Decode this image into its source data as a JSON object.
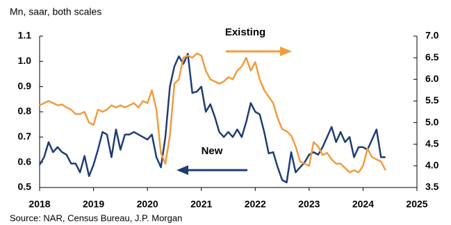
{
  "chart_data": {
    "type": "line",
    "subtitle": "Mn, saar, both scales",
    "source": "Source: NAR, Census Bureau, J.P. Morgan",
    "annotations": [
      "Existing",
      "New"
    ],
    "x": [
      2018,
      2018.083,
      2018.167,
      2018.25,
      2018.333,
      2018.417,
      2018.5,
      2018.583,
      2018.667,
      2018.75,
      2018.833,
      2018.917,
      2019,
      2019.083,
      2019.167,
      2019.25,
      2019.333,
      2019.417,
      2019.5,
      2019.583,
      2019.667,
      2019.75,
      2019.833,
      2019.917,
      2020,
      2020.083,
      2020.167,
      2020.25,
      2020.333,
      2020.417,
      2020.5,
      2020.583,
      2020.667,
      2020.75,
      2020.833,
      2020.917,
      2021,
      2021.083,
      2021.167,
      2021.25,
      2021.333,
      2021.417,
      2021.5,
      2021.583,
      2021.667,
      2021.75,
      2021.833,
      2021.917,
      2022,
      2022.083,
      2022.167,
      2022.25,
      2022.333,
      2022.417,
      2022.5,
      2022.583,
      2022.667,
      2022.75,
      2022.833,
      2022.917,
      2023,
      2023.083,
      2023.167,
      2023.25,
      2023.333,
      2023.417,
      2023.5,
      2023.583,
      2023.667,
      2023.75,
      2023.833,
      2023.917,
      2024,
      2024.083,
      2024.167,
      2024.25,
      2024.333,
      2024.417
    ],
    "series": [
      {
        "name": "New",
        "color": "#1f3d73",
        "axis": "y",
        "values": [
          0.59,
          0.62,
          0.68,
          0.64,
          0.66,
          0.64,
          0.63,
          0.595,
          0.595,
          0.56,
          0.625,
          0.545,
          0.59,
          0.65,
          0.72,
          0.71,
          0.62,
          0.73,
          0.65,
          0.71,
          0.71,
          0.72,
          0.71,
          0.7,
          0.69,
          0.71,
          0.62,
          0.58,
          0.7,
          0.9,
          0.98,
          1.02,
          0.99,
          1.03,
          0.875,
          0.88,
          0.9,
          0.8,
          0.83,
          0.78,
          0.72,
          0.7,
          0.72,
          0.7,
          0.73,
          0.7,
          0.76,
          0.835,
          0.8,
          0.79,
          0.72,
          0.635,
          0.64,
          0.58,
          0.53,
          0.52,
          0.64,
          0.56,
          0.58,
          0.6,
          0.63,
          0.64,
          0.63,
          0.66,
          0.7,
          0.74,
          0.68,
          0.72,
          0.68,
          0.7,
          0.62,
          0.66,
          0.66,
          0.65,
          0.69,
          0.73,
          0.62,
          0.62
        ]
      },
      {
        "name": "Existing",
        "color": "#f39b3c",
        "axis": "y2",
        "values": [
          5.4,
          5.45,
          5.5,
          5.45,
          5.4,
          5.42,
          5.35,
          5.3,
          5.2,
          5.2,
          5.25,
          5.0,
          4.95,
          5.3,
          5.25,
          5.3,
          5.4,
          5.35,
          5.4,
          5.35,
          5.4,
          5.45,
          5.35,
          5.5,
          5.45,
          5.75,
          5.3,
          4.3,
          4.05,
          4.7,
          5.9,
          6.0,
          6.5,
          6.55,
          6.5,
          6.6,
          6.55,
          6.2,
          6.0,
          5.95,
          5.9,
          5.95,
          6.05,
          6.0,
          6.2,
          6.3,
          6.5,
          6.2,
          6.4,
          6.0,
          5.75,
          5.6,
          5.45,
          5.1,
          4.85,
          4.8,
          4.7,
          4.45,
          4.1,
          4.05,
          4.0,
          4.55,
          4.45,
          4.25,
          4.3,
          4.15,
          4.05,
          4.05,
          3.95,
          3.85,
          3.9,
          3.85,
          4.0,
          4.4,
          4.2,
          4.15,
          4.1,
          3.9
        ]
      }
    ],
    "xlim": [
      2018,
      2025
    ],
    "xticks": [
      2018,
      2019,
      2020,
      2021,
      2022,
      2023,
      2024,
      2025
    ],
    "ylim": [
      0.5,
      1.1
    ],
    "yticks": [
      0.5,
      0.6,
      0.7,
      0.8,
      0.9,
      {
        "value": 1,
        "label": "1.0"
      },
      1.1
    ],
    "y2lim": [
      3.5,
      7
    ],
    "y2ticks": [
      3.5,
      {
        "value": 4,
        "label": "4.0"
      },
      4.5,
      {
        "value": 5,
        "label": "5.0"
      },
      5.5,
      {
        "value": 6,
        "label": "6.0"
      },
      6.5,
      {
        "value": 7,
        "label": "7.0"
      }
    ]
  }
}
